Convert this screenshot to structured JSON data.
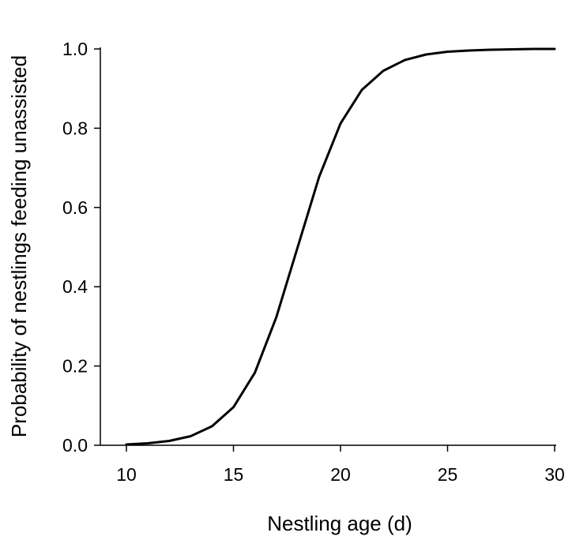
{
  "chart_data": {
    "type": "line",
    "title": "",
    "xlabel": "Nestling age (d)",
    "ylabel": "Probability of nestlings feeding unassisted",
    "xlim": [
      10,
      30
    ],
    "ylim": [
      0,
      1
    ],
    "grid": false,
    "x_ticks": [
      10,
      15,
      20,
      25,
      30
    ],
    "x_tick_labels": [
      "10",
      "15",
      "20",
      "25",
      "30"
    ],
    "y_ticks": [
      0,
      0.2,
      0.4,
      0.6,
      0.8,
      1.0
    ],
    "y_tick_labels": [
      "0.0",
      "0.2",
      "0.4",
      "0.6",
      "0.8",
      "1.0"
    ],
    "series": [
      {
        "color": "#000000",
        "x": [
          10,
          11,
          12,
          13,
          14,
          15,
          16,
          17,
          18,
          19,
          20,
          21,
          22,
          23,
          24,
          25,
          26,
          27,
          28,
          29,
          30
        ],
        "y": [
          0.002,
          0.005,
          0.011,
          0.023,
          0.048,
          0.096,
          0.183,
          0.323,
          0.5,
          0.677,
          0.812,
          0.897,
          0.945,
          0.972,
          0.986,
          0.993,
          0.996,
          0.998,
          0.999,
          1.0,
          1.0
        ]
      }
    ]
  }
}
